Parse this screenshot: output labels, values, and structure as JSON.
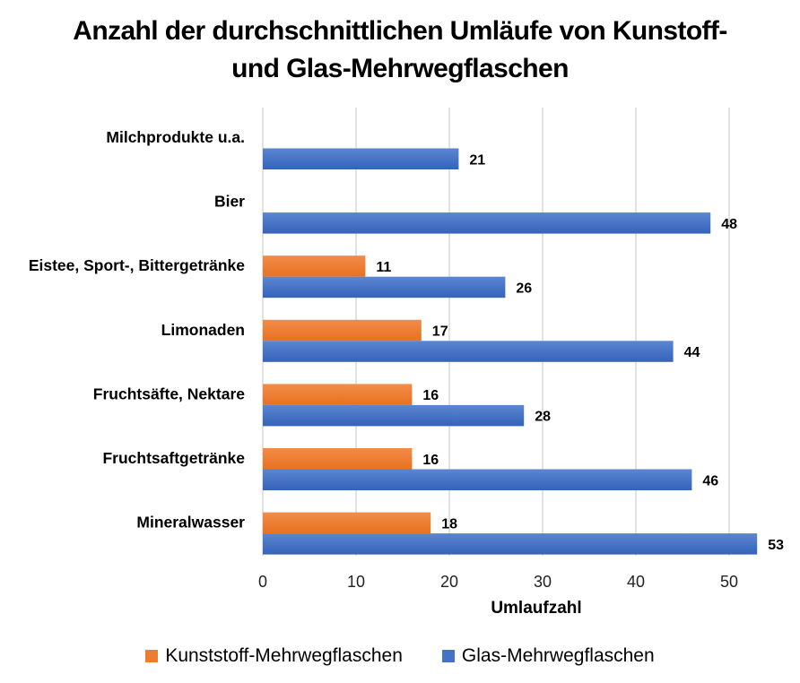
{
  "chart_data": {
    "type": "bar",
    "orientation": "horizontal",
    "title_lines": [
      "Anzahl der durchschnittlichen Umläufe von Kunstoff-",
      "und Glas-Mehrwegflaschen"
    ],
    "xlabel": "Umlaufzahl",
    "ylabel": "",
    "xlim": [
      0,
      55
    ],
    "xticks": [
      0,
      10,
      20,
      30,
      40,
      50
    ],
    "grid": true,
    "legend_position": "bottom",
    "categories": [
      "Milchprodukte u.a.",
      "Bier",
      "Eistee, Sport-, Bittergetränke",
      "Limonaden",
      "Fruchtsäfte, Nektare",
      "Fruchtsaftgetränke",
      "Mineralwasser"
    ],
    "series": [
      {
        "name": "Kunststoff-Mehrwegflaschen",
        "color": "#ED7D31",
        "values": [
          null,
          null,
          11,
          17,
          16,
          16,
          18
        ]
      },
      {
        "name": "Glas-Mehrwegflaschen",
        "color": "#4472C4",
        "values": [
          21,
          48,
          26,
          44,
          28,
          46,
          53
        ]
      }
    ]
  }
}
